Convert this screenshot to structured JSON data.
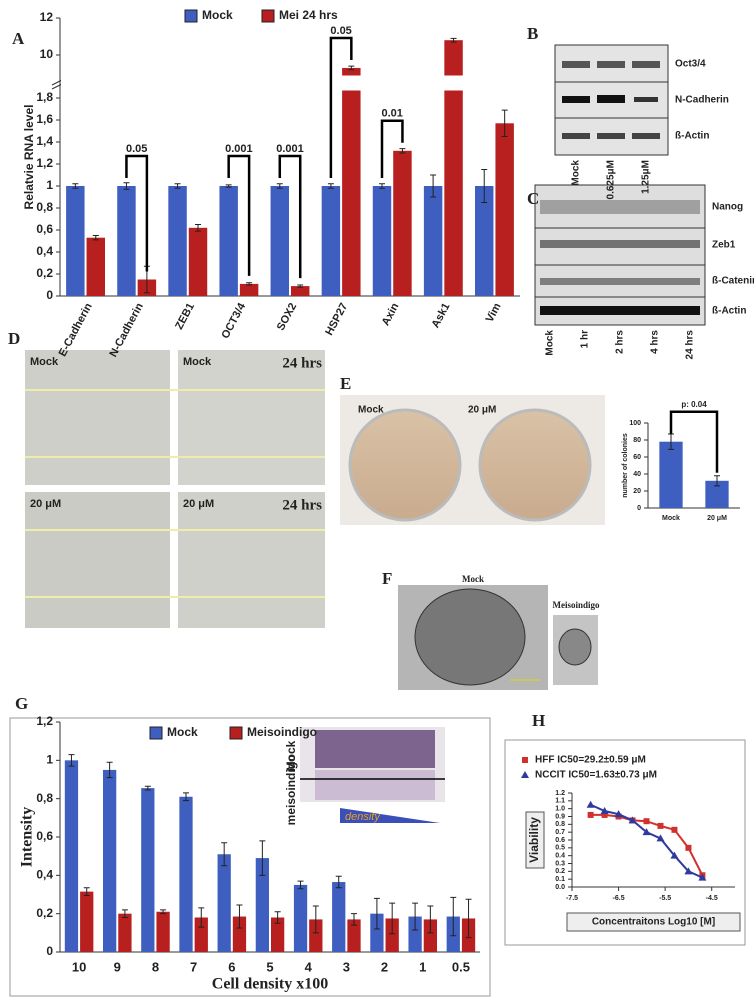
{
  "chart_data": [
    {
      "type": "bar",
      "y_label": "Relatvie RNA level",
      "categories": [
        "E-Cadherin",
        "N-Cadherin",
        "ZEB1",
        "OCT3/4",
        "SOX2",
        "HSP27",
        "Axin",
        "Ask1",
        "Vim"
      ],
      "series": [
        {
          "name": "Mock",
          "color": "#3f5fc0",
          "values": [
            1,
            1,
            1,
            1,
            1,
            1,
            1,
            1,
            1
          ],
          "errors": [
            0.02,
            0.03,
            0.02,
            0.01,
            0.02,
            0.02,
            0.02,
            0.1,
            0.15
          ]
        },
        {
          "name": "Mei 24 hrs",
          "color": "#b81f1f",
          "values": [
            0.53,
            0.15,
            0.62,
            0.11,
            0.09,
            9.3,
            1.32,
            10.8,
            1.57
          ],
          "errors": [
            0.02,
            0.12,
            0.03,
            0.01,
            0.01,
            0.1,
            0.02,
            0.1,
            0.12
          ]
        }
      ],
      "ylim": [
        0,
        12
      ],
      "axis_break": [
        1.85,
        9
      ],
      "yticks": [
        0,
        {
          "value": 0.2,
          "label": "0,2"
        },
        {
          "value": 0.4,
          "label": "0,4"
        },
        {
          "value": 0.6,
          "label": "0,6"
        },
        {
          "value": 0.8,
          "label": "0,8"
        },
        1,
        {
          "value": 1.2,
          "label": "1,2"
        },
        {
          "value": 1.4,
          "label": "1,4"
        },
        {
          "value": 1.6,
          "label": "1,6"
        },
        {
          "value": 1.8,
          "label": "1,8"
        },
        10,
        12
      ],
      "annotations": [
        {
          "category": 1,
          "text": "0.05"
        },
        {
          "category": 3,
          "text": "0.001"
        },
        {
          "category": 4,
          "text": "0.001"
        },
        {
          "category": 5,
          "text": "0.05"
        },
        {
          "category": 6,
          "text": "0.01"
        }
      ]
    },
    {
      "type": "bar",
      "y_label": "number of colonies",
      "categories": [
        "Mock",
        "20 μM"
      ],
      "values": [
        78,
        32
      ],
      "errors": [
        9,
        6
      ],
      "color": "#3f5fc0",
      "ylim": [
        0,
        100
      ],
      "yticks": [
        0,
        20,
        40,
        60,
        80,
        100
      ],
      "annotations": [
        {
          "category": 0,
          "text": "p: 0.04"
        }
      ]
    },
    {
      "type": "bar",
      "x_label": "Cell density x100",
      "y_label": "Intensity",
      "categories": [
        "10",
        "9",
        "8",
        "7",
        "6",
        "5",
        "4",
        "3",
        "2",
        "1",
        "0.5"
      ],
      "series": [
        {
          "name": "Mock",
          "color": "#3f5fc0",
          "values": [
            1,
            0.95,
            0.855,
            0.81,
            0.51,
            0.49,
            0.35,
            0.365,
            0.2,
            0.185,
            0.185
          ],
          "errors": [
            0.03,
            0.04,
            0.01,
            0.02,
            0.06,
            0.09,
            0.02,
            0.03,
            0.08,
            0.07,
            0.1
          ]
        },
        {
          "name": "Meisoindigo",
          "color": "#b81f1f",
          "values": [
            0.315,
            0.2,
            0.21,
            0.18,
            0.185,
            0.18,
            0.17,
            0.17,
            0.175,
            0.17,
            0.175
          ],
          "errors": [
            0.02,
            0.02,
            0.01,
            0.05,
            0.06,
            0.03,
            0.07,
            0.03,
            0.08,
            0.07,
            0.1
          ]
        }
      ],
      "ylim": [
        0,
        1.2
      ],
      "yticks": [
        0,
        {
          "value": 0.2,
          "label": "0,2"
        },
        {
          "value": 0.4,
          "label": "0,4"
        },
        {
          "value": 0.6,
          "label": "0,6"
        },
        {
          "value": 0.8,
          "label": "0,8"
        },
        1,
        {
          "value": 1.2,
          "label": "1,2"
        }
      ]
    },
    {
      "type": "scatter",
      "x_label": "Concentraitons Log10 [M]",
      "y_label": "Viability",
      "series": [
        {
          "name": "HFF IC50=29.2±0.59 μM",
          "color": "#d0312d",
          "marker": "square",
          "x": [
            -7.1,
            -6.8,
            -6.5,
            -6.2,
            -5.9,
            -5.6,
            -5.3,
            -5.0,
            -4.7
          ],
          "y": [
            0.92,
            0.92,
            0.9,
            0.85,
            0.84,
            0.78,
            0.73,
            0.5,
            0.15
          ]
        },
        {
          "name": "NCCIT IC50=1.63±0.73 μM",
          "color": "#2e3a9e",
          "marker": "triangle",
          "x": [
            -7.1,
            -6.8,
            -6.5,
            -6.2,
            -5.9,
            -5.6,
            -5.3,
            -5.0,
            -4.7
          ],
          "y": [
            1.05,
            0.97,
            0.93,
            0.85,
            0.7,
            0.62,
            0.4,
            0.2,
            0.12
          ]
        }
      ],
      "xlim": [
        -7.5,
        -4.0
      ],
      "xticks": [
        -7.5,
        -6.5,
        -5.5,
        -4.5
      ],
      "ylim": [
        0,
        1.2
      ],
      "yticks": [
        {
          "value": 0,
          "label": "0.0"
        },
        0.1,
        0.2,
        0.3,
        0.4,
        0.5,
        0.6,
        0.7,
        0.8,
        0.9,
        {
          "value": 1,
          "label": "1.0"
        },
        1.1,
        1.2
      ]
    }
  ],
  "panels": [
    "A",
    "B",
    "C",
    "D",
    "E",
    "F",
    "G",
    "H"
  ],
  "blot_b": {
    "rows": [
      "Oct3/4",
      "N-Cadherin",
      "ß-Actin"
    ],
    "lanes": [
      "Mock",
      "0.625μM",
      "1.25μM"
    ]
  },
  "blot_c": {
    "rows": [
      "Nanog",
      "Zeb1",
      "ß-Catenin",
      "ß-Actin"
    ],
    "lanes": [
      "Mock",
      "1 hr",
      "2 hrs",
      "4 hrs",
      "24 hrs"
    ]
  },
  "wound_d": {
    "labels": [
      "Mock",
      "Mock",
      "20 μM",
      "20 μM"
    ],
    "time": [
      "24 hrs",
      "24 hrs"
    ]
  },
  "colony_e": {
    "labels": [
      "Mock",
      "20 μM"
    ]
  },
  "sphere_f": {
    "labels": [
      "Mock",
      "Meisoindigo"
    ]
  },
  "plate_g": {
    "labels": [
      "Mock",
      "meisoindigo",
      "density"
    ]
  }
}
